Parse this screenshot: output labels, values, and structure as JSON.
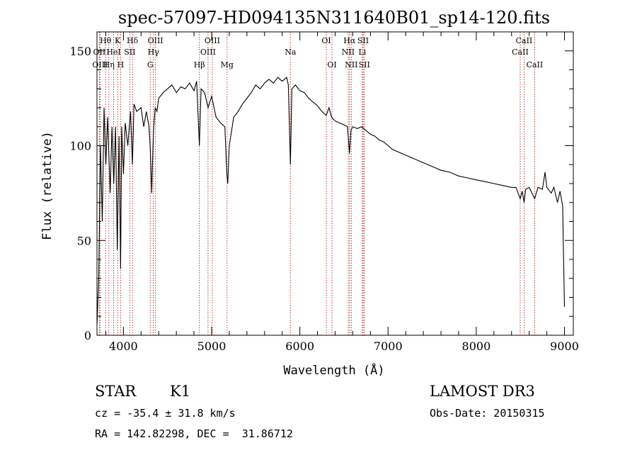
{
  "chart_data": {
    "type": "line",
    "title": "spec-57097-HD094135N311640B01_sp14-120.fits",
    "xlabel": "Wavelength (Å)",
    "ylabel": "Flux (relative)",
    "xlim": [
      3700,
      9100
    ],
    "ylim": [
      0,
      160
    ],
    "xticks": [
      4000,
      5000,
      6000,
      7000,
      8000,
      9000
    ],
    "yticks": [
      0,
      50,
      100,
      150
    ],
    "series": [
      {
        "name": "flux",
        "points": [
          [
            3700,
            5
          ],
          [
            3720,
            30
          ],
          [
            3740,
            100
          ],
          [
            3760,
            60
          ],
          [
            3780,
            120
          ],
          [
            3800,
            90
          ],
          [
            3820,
            115
          ],
          [
            3850,
            75
          ],
          [
            3870,
            110
          ],
          [
            3890,
            80
          ],
          [
            3910,
            110
          ],
          [
            3930,
            45
          ],
          [
            3950,
            105
          ],
          [
            3968,
            35
          ],
          [
            3980,
            110
          ],
          [
            4000,
            85
          ],
          [
            4020,
            112
          ],
          [
            4050,
            100
          ],
          [
            4080,
            118
          ],
          [
            4102,
            90
          ],
          [
            4120,
            122
          ],
          [
            4150,
            118
          ],
          [
            4200,
            120
          ],
          [
            4230,
            110
          ],
          [
            4260,
            118
          ],
          [
            4290,
            110
          ],
          [
            4305,
            98
          ],
          [
            4320,
            75
          ],
          [
            4340,
            108
          ],
          [
            4360,
            120
          ],
          [
            4380,
            118
          ],
          [
            4400,
            125
          ],
          [
            4450,
            128
          ],
          [
            4500,
            130
          ],
          [
            4550,
            132
          ],
          [
            4600,
            128
          ],
          [
            4650,
            131
          ],
          [
            4700,
            130
          ],
          [
            4750,
            133
          ],
          [
            4800,
            129
          ],
          [
            4830,
            134
          ],
          [
            4861,
            100
          ],
          [
            4880,
            130
          ],
          [
            4920,
            128
          ],
          [
            4960,
            120
          ],
          [
            5000,
            126
          ],
          [
            5050,
            115
          ],
          [
            5100,
            112
          ],
          [
            5150,
            110
          ],
          [
            5172,
            85
          ],
          [
            5183,
            80
          ],
          [
            5200,
            100
          ],
          [
            5250,
            115
          ],
          [
            5300,
            118
          ],
          [
            5350,
            122
          ],
          [
            5400,
            125
          ],
          [
            5450,
            128
          ],
          [
            5500,
            132
          ],
          [
            5550,
            130
          ],
          [
            5600,
            133
          ],
          [
            5650,
            135
          ],
          [
            5700,
            133
          ],
          [
            5750,
            136
          ],
          [
            5800,
            134
          ],
          [
            5850,
            136
          ],
          [
            5870,
            132
          ],
          [
            5893,
            90
          ],
          [
            5910,
            130
          ],
          [
            5950,
            132
          ],
          [
            6000,
            129
          ],
          [
            6050,
            128
          ],
          [
            6100,
            125
          ],
          [
            6150,
            123
          ],
          [
            6200,
            121
          ],
          [
            6250,
            118
          ],
          [
            6300,
            116
          ],
          [
            6330,
            120
          ],
          [
            6360,
            115
          ],
          [
            6400,
            113
          ],
          [
            6450,
            112
          ],
          [
            6500,
            111
          ],
          [
            6540,
            110
          ],
          [
            6563,
            96
          ],
          [
            6580,
            108
          ],
          [
            6600,
            110
          ],
          [
            6650,
            109
          ],
          [
            6700,
            110
          ],
          [
            6750,
            108
          ],
          [
            6800,
            106
          ],
          [
            6850,
            105
          ],
          [
            6900,
            103
          ],
          [
            6950,
            102
          ],
          [
            7000,
            100
          ],
          [
            7050,
            98
          ],
          [
            7100,
            97
          ],
          [
            7150,
            96
          ],
          [
            7200,
            95
          ],
          [
            7300,
            93
          ],
          [
            7400,
            91
          ],
          [
            7500,
            89
          ],
          [
            7600,
            87
          ],
          [
            7700,
            86
          ],
          [
            7800,
            84
          ],
          [
            7900,
            83
          ],
          [
            8000,
            82
          ],
          [
            8100,
            81
          ],
          [
            8200,
            80
          ],
          [
            8300,
            79
          ],
          [
            8400,
            78
          ],
          [
            8450,
            78
          ],
          [
            8498,
            72
          ],
          [
            8520,
            76
          ],
          [
            8542,
            70
          ],
          [
            8560,
            77
          ],
          [
            8600,
            78
          ],
          [
            8662,
            72
          ],
          [
            8700,
            78
          ],
          [
            8750,
            77
          ],
          [
            8780,
            86
          ],
          [
            8800,
            78
          ],
          [
            8850,
            75
          ],
          [
            8880,
            78
          ],
          [
            8920,
            70
          ],
          [
            8950,
            76
          ],
          [
            8980,
            68
          ],
          [
            8990,
            40
          ],
          [
            9000,
            15
          ]
        ]
      }
    ],
    "lines": [
      {
        "label": "OII",
        "x": 3727,
        "row": 1
      },
      {
        "label": "Hθ",
        "x": 3798,
        "row": 0
      },
      {
        "label": "OIII",
        "x": 3735,
        "row": 2
      },
      {
        "label": "Hη",
        "x": 3835,
        "row": 2
      },
      {
        "label": "K",
        "x": 3934,
        "row": 0
      },
      {
        "label": "H",
        "x": 3968,
        "row": 2
      },
      {
        "label": "HeI",
        "x": 3889,
        "row": 1
      },
      {
        "label": "SII",
        "x": 4072,
        "row": 1
      },
      {
        "label": "Hδ",
        "x": 4102,
        "row": 0
      },
      {
        "label": "OIII",
        "x": 4363,
        "row": 0
      },
      {
        "label": "Hγ",
        "x": 4340,
        "row": 1
      },
      {
        "label": "G",
        "x": 4304,
        "row": 2
      },
      {
        "label": "Hβ",
        "x": 4861,
        "row": 2
      },
      {
        "label": "OIII",
        "x": 5007,
        "row": 0
      },
      {
        "label": "OIII",
        "x": 4959,
        "row": 1
      },
      {
        "label": "Mg",
        "x": 5175,
        "row": 2
      },
      {
        "label": "Na",
        "x": 5893,
        "row": 1
      },
      {
        "label": "OI",
        "x": 6300,
        "row": 0
      },
      {
        "label": "OI",
        "x": 6364,
        "row": 2
      },
      {
        "label": "Hα",
        "x": 6563,
        "row": 0
      },
      {
        "label": "SII",
        "x": 6717,
        "row": 0
      },
      {
        "label": "NII",
        "x": 6548,
        "row": 1
      },
      {
        "label": "Li",
        "x": 6708,
        "row": 1
      },
      {
        "label": "NII",
        "x": 6583,
        "row": 2
      },
      {
        "label": "SII",
        "x": 6731,
        "row": 2
      },
      {
        "label": "CaII",
        "x": 8542,
        "row": 0
      },
      {
        "label": "CaII",
        "x": 8498,
        "row": 1
      },
      {
        "label": "CaII",
        "x": 8662,
        "row": 2
      }
    ]
  },
  "footer": {
    "object_type": "STAR",
    "subclass": "K1",
    "survey": "LAMOST DR3",
    "redshift": "cz = -35.4 ± 31.8 km/s",
    "obs_date": "Obs-Date: 20150315",
    "coords": "RA = 142.82298, DEC =  31.86712"
  }
}
